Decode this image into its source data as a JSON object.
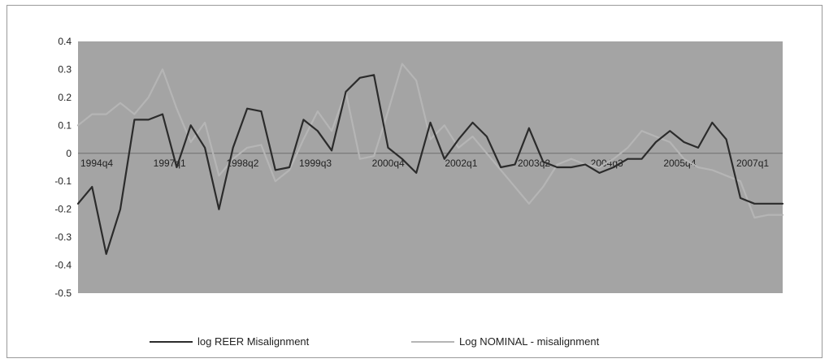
{
  "chart_data": {
    "type": "line",
    "ylim": [
      -0.5,
      0.4
    ],
    "yticks": [
      "0.4",
      "0.3",
      "0.2",
      "0.1",
      "0",
      "-0.1",
      "-0.2",
      "-0.3",
      "-0.4",
      "-0.5"
    ],
    "xtick_labels": [
      "1994q4",
      "1997q1",
      "1998q2",
      "1999q3",
      "2000q4",
      "2002q1",
      "2003q2",
      "2004q3",
      "2005q4",
      "2007q1"
    ],
    "x": [
      0,
      2,
      4,
      6,
      8,
      10,
      12,
      14,
      16,
      18,
      20,
      22,
      24,
      26,
      28,
      30,
      32,
      34,
      36,
      38,
      40,
      42,
      44,
      46,
      48,
      50,
      52,
      54,
      56,
      58,
      60,
      62,
      64,
      66,
      68,
      70,
      72,
      74,
      76,
      78,
      80,
      82,
      84,
      86,
      88,
      90,
      92,
      94,
      96,
      98,
      100
    ],
    "series": [
      {
        "name": "log REER Misalignment",
        "color": "#2b2b2b",
        "values": [
          -0.18,
          -0.12,
          -0.36,
          -0.2,
          0.12,
          0.12,
          0.14,
          -0.05,
          0.1,
          0.02,
          -0.2,
          0.02,
          0.16,
          0.15,
          -0.06,
          -0.05,
          0.12,
          0.08,
          0.01,
          0.22,
          0.27,
          0.28,
          0.02,
          -0.02,
          -0.07,
          0.11,
          -0.02,
          0.05,
          0.11,
          0.06,
          -0.05,
          -0.04,
          0.09,
          -0.03,
          -0.05,
          -0.05,
          -0.04,
          -0.07,
          -0.05,
          -0.02,
          -0.02,
          0.04,
          0.08,
          0.04,
          0.02,
          0.11,
          0.05,
          -0.16,
          -0.18,
          -0.18,
          -0.18
        ]
      },
      {
        "name": "Log NOMINAL - misalignment",
        "color": "#b5b5b5",
        "values": [
          0.1,
          0.14,
          0.14,
          0.18,
          0.14,
          0.2,
          0.3,
          0.16,
          0.04,
          0.11,
          -0.08,
          -0.02,
          0.02,
          0.03,
          -0.1,
          -0.06,
          0.05,
          0.15,
          0.08,
          0.22,
          -0.02,
          -0.01,
          0.15,
          0.32,
          0.26,
          0.05,
          0.1,
          0.02,
          0.06,
          0.0,
          -0.06,
          -0.12,
          -0.18,
          -0.12,
          -0.04,
          -0.02,
          -0.04,
          -0.05,
          -0.02,
          0.02,
          0.08,
          0.06,
          0.04,
          -0.02,
          -0.05,
          -0.06,
          -0.08,
          -0.1,
          -0.23,
          -0.22,
          -0.22
        ]
      }
    ],
    "legend": "bottom",
    "grid": false,
    "plot_background": "#a4a4a4"
  }
}
